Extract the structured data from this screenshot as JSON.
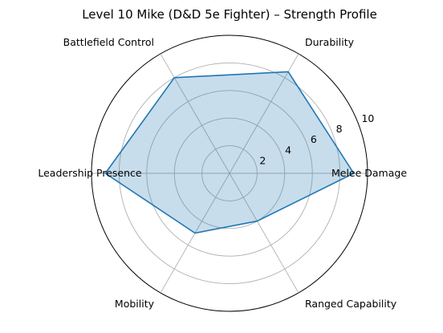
{
  "chart_data": {
    "type": "radar",
    "title": "Level 10 Mike (D&D 5e Fighter) – Strength Profile",
    "categories": [
      "Melee Damage",
      "Durability",
      "Battlefield Control",
      "Leadership Presence",
      "Mobility",
      "Ranged Capability"
    ],
    "series": [
      {
        "values": [
          9,
          8.5,
          8,
          9,
          5,
          4
        ]
      }
    ],
    "rlim": [
      0,
      10
    ],
    "rticks": [
      2,
      4,
      6,
      8,
      10
    ],
    "grid": true,
    "colors": {
      "line": "#1f77b4",
      "fill": "#1f77b4",
      "fill_opacity": 0.25,
      "grid": "#b0b0b0",
      "outer_frame": "#000000"
    }
  }
}
